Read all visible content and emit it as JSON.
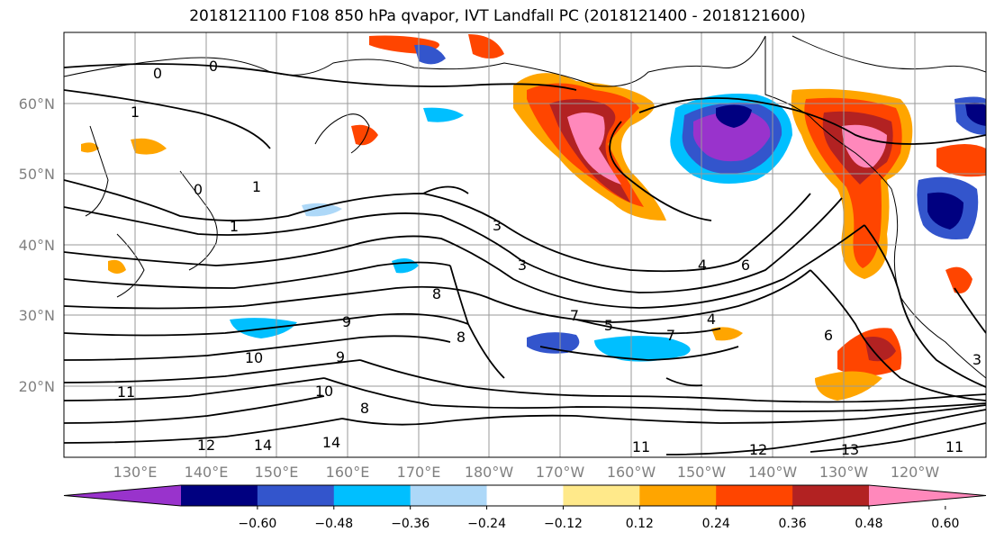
{
  "title": "2018121100 F108 850 hPa qvapor, IVT Landfall PC (2018121400 - 2018121600)",
  "lat_labels": [
    "60°N",
    "50°N",
    "40°N",
    "30°N",
    "20°N"
  ],
  "lon_labels": [
    "130°E",
    "140°E",
    "150°E",
    "160°E",
    "170°E",
    "180°W",
    "170°W",
    "160°W",
    "150°W",
    "140°W",
    "130°W",
    "120°W"
  ],
  "colorbar": {
    "colors": [
      "#9933cc",
      "#000080",
      "#3355cc",
      "#00bfff",
      "#add8f8",
      "#ffffff",
      "#ffe98a",
      "#ffa500",
      "#ff4500",
      "#b22222",
      "#ff88bb"
    ],
    "tick_labels": [
      "−0.60",
      "−0.48",
      "−0.36",
      "−0.24",
      "−0.12",
      "0.12",
      "0.24",
      "0.36",
      "0.48",
      "0.60"
    ]
  },
  "contour_labels": [
    "0",
    "0",
    "1",
    "0",
    "1",
    "1",
    "3",
    "3",
    "4",
    "6",
    "7",
    "5",
    "4",
    "7",
    "6",
    "8",
    "8",
    "9",
    "9",
    "10",
    "11",
    "10",
    "12",
    "14",
    "14",
    "8",
    "11",
    "12",
    "13",
    "11",
    "3"
  ]
}
